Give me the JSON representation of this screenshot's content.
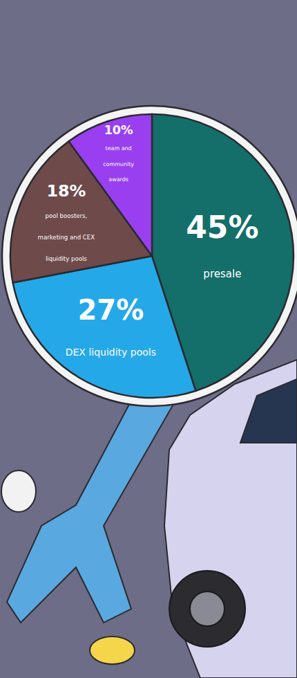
{
  "chart_data": {
    "type": "pie",
    "categories": [
      "presale",
      "DEX liquidity pools",
      "pool boosters, marketing and CEX liquidity pools",
      "team and community awards"
    ],
    "values": [
      45,
      27,
      18,
      10
    ],
    "value_labels": [
      "45%",
      "27%",
      "18%",
      "10%"
    ],
    "colors": [
      "#146e69",
      "#25a8e8",
      "#6e4a4b",
      "#9a3ff0"
    ],
    "data_labels": true
  }
}
